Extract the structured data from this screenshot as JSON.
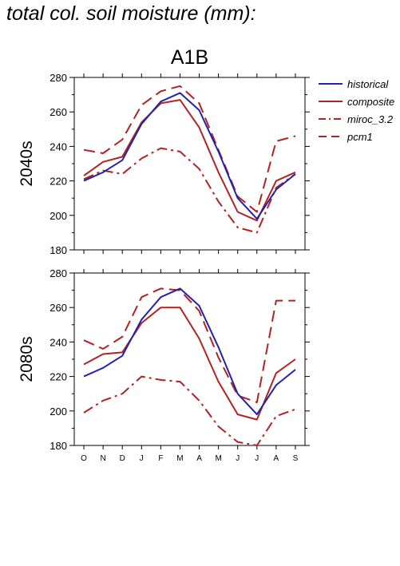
{
  "title": "total col. soil moisture (mm):",
  "scenario_label": "A1B",
  "legend": [
    {
      "name": "historical",
      "color": "#2222aa",
      "dash": "solid"
    },
    {
      "name": "composite",
      "color": "#b22222",
      "dash": "solid"
    },
    {
      "name": "miroc_3.2",
      "color": "#b22222",
      "dash": "dashdot"
    },
    {
      "name": "pcm1",
      "color": "#b22222",
      "dash": "dashed"
    }
  ],
  "chart_data": [
    {
      "type": "line",
      "ylabel": "2040s",
      "ylim": [
        180,
        280
      ],
      "yticks": [
        180,
        200,
        220,
        240,
        260,
        280
      ],
      "categories": [
        "O",
        "N",
        "D",
        "J",
        "F",
        "M",
        "A",
        "M",
        "J",
        "J",
        "A",
        "S"
      ],
      "series": [
        {
          "name": "historical",
          "values": [
            220,
            225,
            232,
            253,
            266,
            271,
            261,
            237,
            210,
            198,
            215,
            224
          ]
        },
        {
          "name": "composite",
          "values": [
            223,
            231,
            234,
            254,
            265,
            267,
            251,
            225,
            202,
            197,
            220,
            225
          ]
        },
        {
          "name": "miroc_3.2",
          "values": [
            221,
            226,
            224,
            233,
            239,
            237,
            227,
            208,
            193,
            190,
            216,
            224
          ]
        },
        {
          "name": "pcm1",
          "values": [
            238,
            236,
            244,
            264,
            272,
            275,
            265,
            238,
            211,
            202,
            243,
            246
          ]
        }
      ]
    },
    {
      "type": "line",
      "ylabel": "2080s",
      "ylim": [
        180,
        280
      ],
      "yticks": [
        180,
        200,
        220,
        240,
        260,
        280
      ],
      "categories": [
        "O",
        "N",
        "D",
        "J",
        "F",
        "M",
        "A",
        "M",
        "J",
        "J",
        "A",
        "S"
      ],
      "series": [
        {
          "name": "historical",
          "values": [
            220,
            225,
            232,
            253,
            266,
            271,
            261,
            237,
            210,
            198,
            215,
            224
          ]
        },
        {
          "name": "composite",
          "values": [
            227,
            233,
            234,
            251,
            260,
            260,
            242,
            217,
            198,
            195,
            222,
            230
          ]
        },
        {
          "name": "miroc_3.2",
          "values": [
            199,
            206,
            210,
            220,
            218,
            217,
            206,
            191,
            182,
            180,
            197,
            201
          ]
        },
        {
          "name": "pcm1",
          "values": [
            241,
            236,
            243,
            266,
            271,
            270,
            258,
            231,
            209,
            205,
            264,
            264
          ]
        }
      ]
    }
  ]
}
